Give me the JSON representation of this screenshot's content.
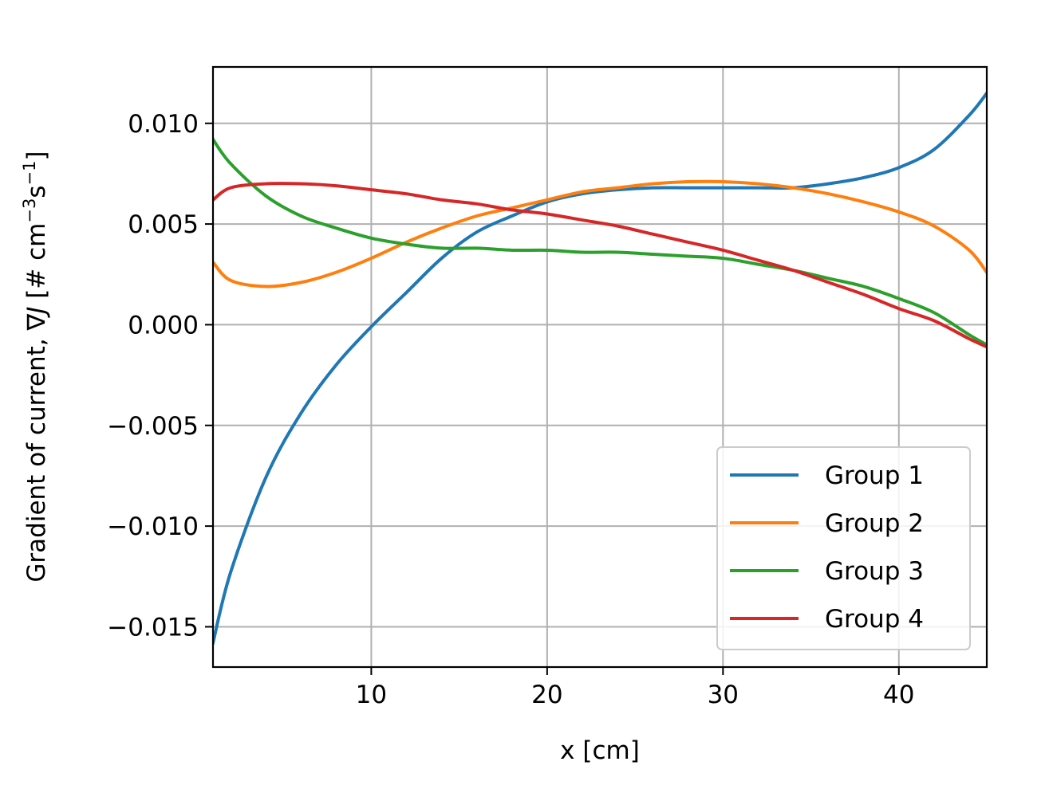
{
  "chart_data": {
    "type": "line",
    "xlabel": "x [cm]",
    "ylabel_prefix": "Gradient of current, ",
    "ylabel_math": "∇J",
    "ylabel_unit_open": " [# cm",
    "ylabel_exp1": "−3",
    "ylabel_unit_mid": "s",
    "ylabel_exp2": "−1",
    "ylabel_unit_close": "]",
    "xlim": [
      1,
      45
    ],
    "ylim": [
      -0.017,
      0.0128
    ],
    "xticks": [
      10,
      20,
      30,
      40
    ],
    "xtick_labels": [
      "10",
      "20",
      "30",
      "40"
    ],
    "yticks": [
      -0.015,
      -0.01,
      -0.005,
      0.0,
      0.005,
      0.01
    ],
    "ytick_labels": [
      "−0.015",
      "−0.010",
      "−0.005",
      "0.000",
      "0.005",
      "0.010"
    ],
    "grid": true,
    "legend_position": "lower right",
    "series": [
      {
        "name": "Group 1",
        "color": "#1f77b4",
        "x": [
          1,
          2,
          4,
          6,
          8,
          10,
          12,
          14,
          16,
          18,
          20,
          22,
          24,
          26,
          28,
          30,
          32,
          34,
          36,
          38,
          40,
          42,
          44,
          45
        ],
        "y": [
          -0.0158,
          -0.0123,
          -0.0076,
          -0.0044,
          -0.002,
          -0.0001,
          0.0016,
          0.0033,
          0.0046,
          0.0054,
          0.0061,
          0.0065,
          0.0067,
          0.0068,
          0.0068,
          0.0068,
          0.0068,
          0.0068,
          0.007,
          0.0073,
          0.0078,
          0.0087,
          0.0104,
          0.0115
        ]
      },
      {
        "name": "Group 2",
        "color": "#ff7f0e",
        "x": [
          1,
          2,
          4,
          6,
          8,
          10,
          12,
          14,
          16,
          18,
          20,
          22,
          24,
          26,
          28,
          30,
          32,
          34,
          36,
          38,
          40,
          42,
          44,
          45
        ],
        "y": [
          0.0031,
          0.0022,
          0.0019,
          0.0021,
          0.0026,
          0.0033,
          0.0041,
          0.0048,
          0.0054,
          0.0058,
          0.0062,
          0.0066,
          0.0068,
          0.007,
          0.0071,
          0.0071,
          0.007,
          0.0068,
          0.0065,
          0.0061,
          0.0056,
          0.0049,
          0.0037,
          0.0026
        ]
      },
      {
        "name": "Group 3",
        "color": "#2ca02c",
        "x": [
          1,
          2,
          4,
          6,
          8,
          10,
          12,
          14,
          16,
          18,
          20,
          22,
          24,
          26,
          28,
          30,
          32,
          34,
          36,
          38,
          40,
          42,
          44,
          45
        ],
        "y": [
          0.0092,
          0.008,
          0.0064,
          0.0054,
          0.0048,
          0.0043,
          0.004,
          0.0038,
          0.0038,
          0.0037,
          0.0037,
          0.0036,
          0.0036,
          0.0035,
          0.0034,
          0.0033,
          0.003,
          0.0027,
          0.0023,
          0.0019,
          0.0013,
          0.0006,
          -0.0005,
          -0.001
        ]
      },
      {
        "name": "Group 4",
        "color": "#d62728",
        "x": [
          1,
          2,
          4,
          6,
          8,
          10,
          12,
          14,
          16,
          18,
          20,
          22,
          24,
          26,
          28,
          30,
          32,
          34,
          36,
          38,
          40,
          42,
          44,
          45
        ],
        "y": [
          0.0062,
          0.0068,
          0.007,
          0.007,
          0.0069,
          0.0067,
          0.0065,
          0.0062,
          0.006,
          0.0057,
          0.0055,
          0.0052,
          0.0049,
          0.0045,
          0.0041,
          0.0037,
          0.0032,
          0.0027,
          0.0021,
          0.0015,
          0.0008,
          0.0002,
          -0.0007,
          -0.0011
        ]
      }
    ]
  }
}
